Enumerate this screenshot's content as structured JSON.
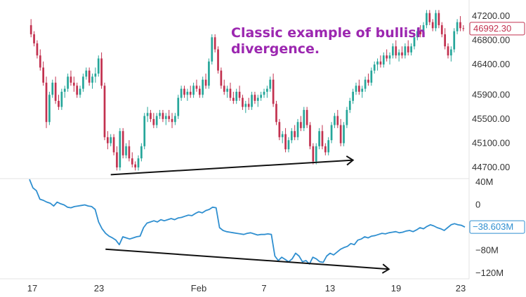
{
  "chart_data": {
    "type": "candlestick",
    "colors": {
      "up": "#26a69a",
      "down": "#c2314f",
      "indicator": "#2f8fd0",
      "annotation": "#9c27b0",
      "arrow": "#111111"
    },
    "x_ticks": [
      "17",
      "23",
      "Feb",
      "7",
      "13",
      "19",
      "23"
    ],
    "price_panel": {
      "y_ticks": [
        "47200.00",
        "46800.00",
        "46400.00",
        "45900.00",
        "45500.00",
        "45100.00",
        "44700.00"
      ],
      "ylim": [
        44550,
        47350
      ],
      "last_price_label": "46992.30",
      "annotation": [
        "Classic example of bullish",
        "divergence."
      ],
      "ohlc": [
        [
          47050,
          47150,
          46850,
          46900
        ],
        [
          46900,
          46950,
          46700,
          46750
        ],
        [
          46750,
          46800,
          46500,
          46550
        ],
        [
          46550,
          46650,
          46300,
          46350
        ],
        [
          46350,
          46450,
          46050,
          46100
        ],
        [
          46100,
          46200,
          45350,
          45450
        ],
        [
          45450,
          45950,
          45400,
          45900
        ],
        [
          45900,
          46150,
          45850,
          46100
        ],
        [
          46100,
          46200,
          45750,
          45800
        ],
        [
          45800,
          45900,
          45650,
          45700
        ],
        [
          45700,
          46000,
          45650,
          45950
        ],
        [
          45950,
          46050,
          45850,
          46000
        ],
        [
          46000,
          46250,
          45950,
          46200
        ],
        [
          46200,
          46300,
          46050,
          46100
        ],
        [
          46100,
          46200,
          45950,
          46050
        ],
        [
          46050,
          46100,
          45850,
          45900
        ],
        [
          45900,
          46050,
          45850,
          46000
        ],
        [
          46000,
          46250,
          45950,
          46200
        ],
        [
          46200,
          46350,
          46150,
          46300
        ],
        [
          46300,
          46350,
          46050,
          46100
        ],
        [
          46100,
          46250,
          46000,
          46200
        ],
        [
          46200,
          46350,
          46100,
          46250
        ],
        [
          46250,
          46550,
          46200,
          46500
        ],
        [
          46500,
          46600,
          46000,
          46050
        ],
        [
          46050,
          46100,
          45150,
          45200
        ],
        [
          45200,
          45300,
          45000,
          45100
        ],
        [
          45100,
          45250,
          45050,
          45200
        ],
        [
          45200,
          45250,
          44900,
          44950
        ],
        [
          44950,
          45050,
          44650,
          44700
        ],
        [
          44700,
          45350,
          44650,
          45300
        ],
        [
          45300,
          45350,
          44850,
          44900
        ],
        [
          44900,
          45100,
          44850,
          45050
        ],
        [
          45050,
          45150,
          44800,
          44850
        ],
        [
          44850,
          44950,
          44700,
          44750
        ],
        [
          44750,
          44800,
          44650,
          44700
        ],
        [
          44700,
          44900,
          44650,
          44850
        ],
        [
          44850,
          45100,
          44800,
          45050
        ],
        [
          45050,
          45600,
          45000,
          45550
        ],
        [
          45550,
          45700,
          45450,
          45600
        ],
        [
          45600,
          45650,
          45450,
          45500
        ],
        [
          45500,
          45600,
          45350,
          45400
        ],
        [
          45400,
          45600,
          45350,
          45550
        ],
        [
          45550,
          45650,
          45500,
          45600
        ],
        [
          45600,
          45650,
          45450,
          45500
        ],
        [
          45500,
          45600,
          45400,
          45550
        ],
        [
          45550,
          45650,
          45450,
          45500
        ],
        [
          45500,
          45600,
          45350,
          45450
        ],
        [
          45450,
          45600,
          45400,
          45550
        ],
        [
          45550,
          45900,
          45500,
          45850
        ],
        [
          45850,
          46050,
          45800,
          46000
        ],
        [
          46000,
          46050,
          45850,
          45900
        ],
        [
          45900,
          46000,
          45800,
          45950
        ],
        [
          45950,
          46050,
          45850,
          45900
        ],
        [
          45900,
          46100,
          45850,
          46050
        ],
        [
          46050,
          46150,
          45950,
          46000
        ],
        [
          46000,
          46050,
          45850,
          45900
        ],
        [
          45900,
          46200,
          45850,
          46150
        ],
        [
          46150,
          46250,
          46000,
          46050
        ],
        [
          46050,
          46500,
          46000,
          46450
        ],
        [
          46450,
          46900,
          46400,
          46850
        ],
        [
          46850,
          46900,
          46600,
          46650
        ],
        [
          46650,
          46700,
          46250,
          46300
        ],
        [
          46300,
          46350,
          46000,
          46050
        ],
        [
          46050,
          46150,
          45900,
          45950
        ],
        [
          45950,
          46050,
          45850,
          46000
        ],
        [
          46000,
          46100,
          45800,
          45850
        ],
        [
          45850,
          45950,
          45750,
          45800
        ],
        [
          45800,
          46000,
          45750,
          45950
        ],
        [
          45950,
          46050,
          45800,
          45850
        ],
        [
          45850,
          45900,
          45650,
          45700
        ],
        [
          45700,
          45800,
          45600,
          45750
        ],
        [
          45750,
          45850,
          45650,
          45700
        ],
        [
          45700,
          45950,
          45650,
          45900
        ],
        [
          45900,
          45950,
          45750,
          45800
        ],
        [
          45800,
          45900,
          45700,
          45850
        ],
        [
          45850,
          45950,
          45800,
          45900
        ],
        [
          45900,
          46000,
          45850,
          45950
        ],
        [
          45950,
          46050,
          45850,
          46000
        ],
        [
          46000,
          46200,
          45950,
          46150
        ],
        [
          46150,
          46250,
          45700,
          45750
        ],
        [
          45750,
          45800,
          45400,
          45450
        ],
        [
          45450,
          45500,
          45150,
          45200
        ],
        [
          45200,
          45300,
          45100,
          45250
        ],
        [
          45250,
          45350,
          44950,
          45000
        ],
        [
          45000,
          45200,
          44950,
          45150
        ],
        [
          45150,
          45350,
          45100,
          45300
        ],
        [
          45300,
          45400,
          45150,
          45200
        ],
        [
          45200,
          45500,
          45150,
          45450
        ],
        [
          45450,
          45550,
          45300,
          45350
        ],
        [
          45350,
          45700,
          45300,
          45650
        ],
        [
          45650,
          45700,
          45350,
          45400
        ],
        [
          45400,
          45450,
          45000,
          45050
        ],
        [
          45050,
          45100,
          44750,
          44800
        ],
        [
          44800,
          45100,
          44750,
          45050
        ],
        [
          45050,
          45350,
          45000,
          45300
        ],
        [
          45300,
          45400,
          45000,
          45050
        ],
        [
          45050,
          45100,
          44900,
          44950
        ],
        [
          44950,
          45200,
          44900,
          45150
        ],
        [
          45150,
          45450,
          45100,
          45400
        ],
        [
          45400,
          45600,
          45350,
          45550
        ],
        [
          45550,
          45650,
          45350,
          45400
        ],
        [
          45400,
          45500,
          45050,
          45100
        ],
        [
          45100,
          45450,
          45050,
          45400
        ],
        [
          45400,
          45700,
          45350,
          45650
        ],
        [
          45650,
          45850,
          45600,
          45800
        ],
        [
          45800,
          46000,
          45750,
          45950
        ],
        [
          45950,
          46100,
          45900,
          46050
        ],
        [
          46050,
          46150,
          45900,
          45950
        ],
        [
          45950,
          46050,
          45850,
          46000
        ],
        [
          46000,
          46200,
          45950,
          46150
        ],
        [
          46150,
          46250,
          46050,
          46100
        ],
        [
          46100,
          46350,
          46050,
          46300
        ],
        [
          46300,
          46450,
          46250,
          46400
        ],
        [
          46400,
          46500,
          46300,
          46450
        ],
        [
          46450,
          46550,
          46350,
          46400
        ],
        [
          46400,
          46600,
          46350,
          46550
        ],
        [
          46550,
          46650,
          46450,
          46500
        ],
        [
          46500,
          46600,
          46400,
          46550
        ],
        [
          46550,
          46750,
          46500,
          46700
        ],
        [
          46700,
          46800,
          46500,
          46550
        ],
        [
          46550,
          46650,
          46450,
          46600
        ],
        [
          46600,
          46700,
          46500,
          46550
        ],
        [
          46550,
          46750,
          46500,
          46700
        ],
        [
          46700,
          46800,
          46550,
          46600
        ],
        [
          46600,
          46750,
          46550,
          46700
        ],
        [
          46700,
          46900,
          46650,
          46850
        ],
        [
          46850,
          47000,
          46800,
          46950
        ],
        [
          46950,
          47050,
          46850,
          46900
        ],
        [
          46900,
          47100,
          46850,
          47050
        ],
        [
          47050,
          47300,
          47000,
          47250
        ],
        [
          47250,
          47300,
          47050,
          47100
        ],
        [
          47100,
          47150,
          46950,
          47000
        ],
        [
          47000,
          47300,
          46950,
          47250
        ],
        [
          47250,
          47300,
          47000,
          47050
        ],
        [
          47050,
          47100,
          46850,
          46900
        ],
        [
          46900,
          47000,
          46650,
          46700
        ],
        [
          46700,
          46750,
          46500,
          46550
        ],
        [
          46550,
          46700,
          46450,
          46650
        ],
        [
          46650,
          47000,
          46600,
          46950
        ],
        [
          46950,
          47150,
          46900,
          47100
        ],
        [
          47100,
          47200,
          46950,
          47000
        ],
        [
          47000,
          47050,
          46950,
          46992
        ]
      ]
    },
    "indicator_panel": {
      "y_ticks": [
        "40M",
        "0",
        "−80M",
        "−120M"
      ],
      "ylim": [
        -130,
        45
      ],
      "last_value_label": "−38.603M",
      "values": [
        45,
        30,
        25,
        10,
        8,
        5,
        3,
        -2,
        5,
        2,
        0,
        -4,
        -5,
        -3,
        -2,
        -1,
        0,
        -2,
        -3,
        -8,
        -30,
        -42,
        -50,
        -55,
        -58,
        -62,
        -70,
        -56,
        -58,
        -60,
        -58,
        -56,
        -55,
        -40,
        -32,
        -30,
        -28,
        -30,
        -26,
        -28,
        -26,
        -24,
        -26,
        -23,
        -22,
        -20,
        -18,
        -19,
        -15,
        -12,
        -14,
        -10,
        -8,
        -4,
        -5,
        -40,
        -45,
        -47,
        -48,
        -49,
        -50,
        -51,
        -52,
        -50,
        -49,
        -51,
        -53,
        -52,
        -52,
        -51,
        -52,
        -90,
        -98,
        -92,
        -96,
        -100,
        -95,
        -85,
        -90,
        -100,
        -98,
        -104,
        -92,
        -95,
        -100,
        -101,
        -90,
        -85,
        -88,
        -83,
        -78,
        -75,
        -73,
        -68,
        -70,
        -62,
        -60,
        -56,
        -58,
        -55,
        -54,
        -52,
        -50,
        -51,
        -49,
        -48,
        -47,
        -49,
        -48,
        -46,
        -45,
        -47,
        -44,
        -40,
        -42,
        -38,
        -35,
        -37,
        -40,
        -42,
        -45,
        -40,
        -35,
        -33,
        -35,
        -36,
        -39
      ]
    },
    "divergence_lines": {
      "price": {
        "from": [
          26,
          44580
        ],
        "to": [
          105,
          44820
        ]
      },
      "indicator": {
        "from": [
          22,
          -78
        ],
        "to": [
          104,
          -113
        ]
      }
    }
  }
}
